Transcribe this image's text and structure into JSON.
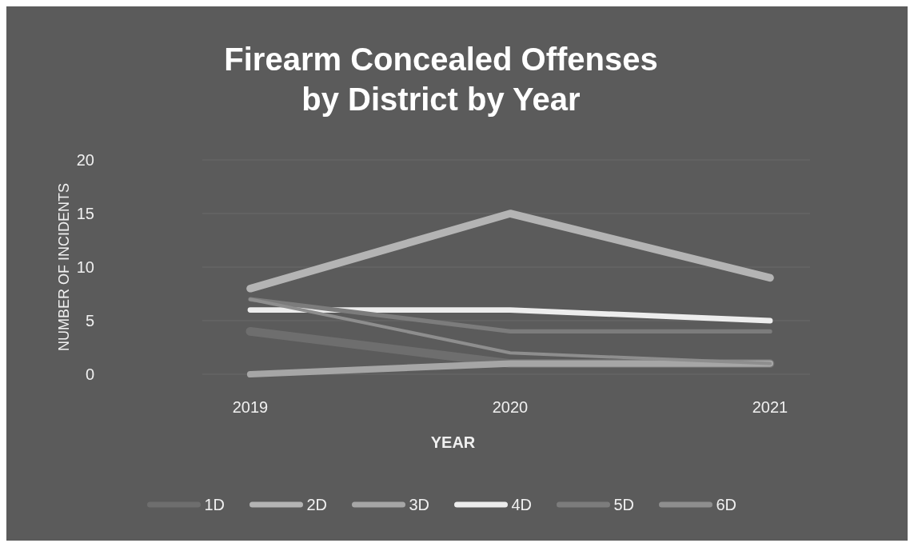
{
  "chart_data": {
    "type": "line",
    "title": "Firearm Concealed Offenses by District by Year",
    "xlabel": "YEAR",
    "ylabel": "NUMBER OF INCIDENTS",
    "categories": [
      "2019",
      "2020",
      "2021"
    ],
    "ylim": [
      0,
      20
    ],
    "yticks": [
      0,
      5,
      10,
      15,
      20
    ],
    "grid": "y",
    "legend": "bottom",
    "series": [
      {
        "name": "1D",
        "color": "#6e6e6e",
        "values": [
          4,
          1,
          1
        ]
      },
      {
        "name": "2D",
        "color": "#b4b4b4",
        "values": [
          8,
          15,
          9
        ]
      },
      {
        "name": "3D",
        "color": "#a6a6a6",
        "values": [
          0,
          1,
          1
        ]
      },
      {
        "name": "4D",
        "color": "#ededed",
        "values": [
          6,
          6,
          5
        ]
      },
      {
        "name": "5D",
        "color": "#7c7c7c",
        "values": [
          7,
          4,
          4
        ]
      },
      {
        "name": "6D",
        "color": "#8e8e8e",
        "values": [
          7,
          2,
          1
        ]
      }
    ]
  }
}
